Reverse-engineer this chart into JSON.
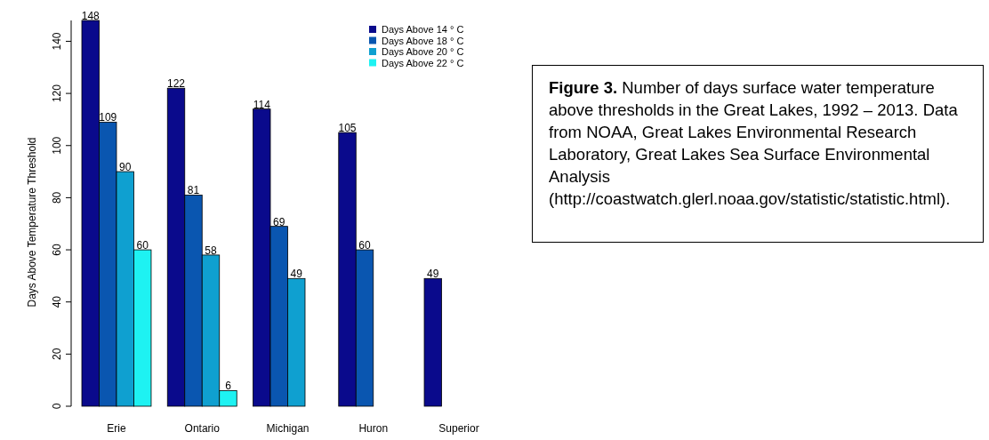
{
  "chart_data": {
    "type": "bar",
    "ylabel": "Days Above Temperature Threshold",
    "categories": [
      "Erie",
      "Ontario",
      "Michigan",
      "Huron",
      "Superior"
    ],
    "series": [
      {
        "name": "Days Above 14 ° C",
        "color": "#0a0a8c",
        "values": [
          148,
          122,
          114,
          105,
          49
        ],
        "value_labels": [
          "148",
          "122",
          "114",
          "105",
          "49"
        ]
      },
      {
        "name": "Days Above 18 ° C",
        "color": "#0a56b0",
        "values": [
          109,
          81,
          69,
          60,
          0
        ],
        "value_labels": [
          "109",
          "81",
          "69",
          "60",
          null
        ]
      },
      {
        "name": "Days Above 20 ° C",
        "color": "#0fa0d0",
        "values": [
          90,
          58,
          49,
          0,
          0
        ],
        "value_labels": [
          "90",
          "58",
          "49",
          null,
          null
        ]
      },
      {
        "name": "Days Above 22 ° C",
        "color": "#1ef2f2",
        "values": [
          60,
          6,
          0,
          0,
          0
        ],
        "value_labels": [
          "60",
          "6",
          null,
          null,
          null
        ]
      }
    ],
    "ylim": [
      0,
      148
    ],
    "yticks": [
      0,
      20,
      40,
      60,
      80,
      100,
      120,
      140
    ],
    "legend": "top right",
    "annotations": [
      "Figure 3. Number of days surface water temperature above thresholds in the Great Lakes, 1992 – 2013. Data from NOAA, Great Lakes Environmental Research Laboratory, Great Lakes Sea Surface Environmental Analysis (http://coastwatch.glerl.noaa.gov/statistic/statistic.html)."
    ]
  }
}
